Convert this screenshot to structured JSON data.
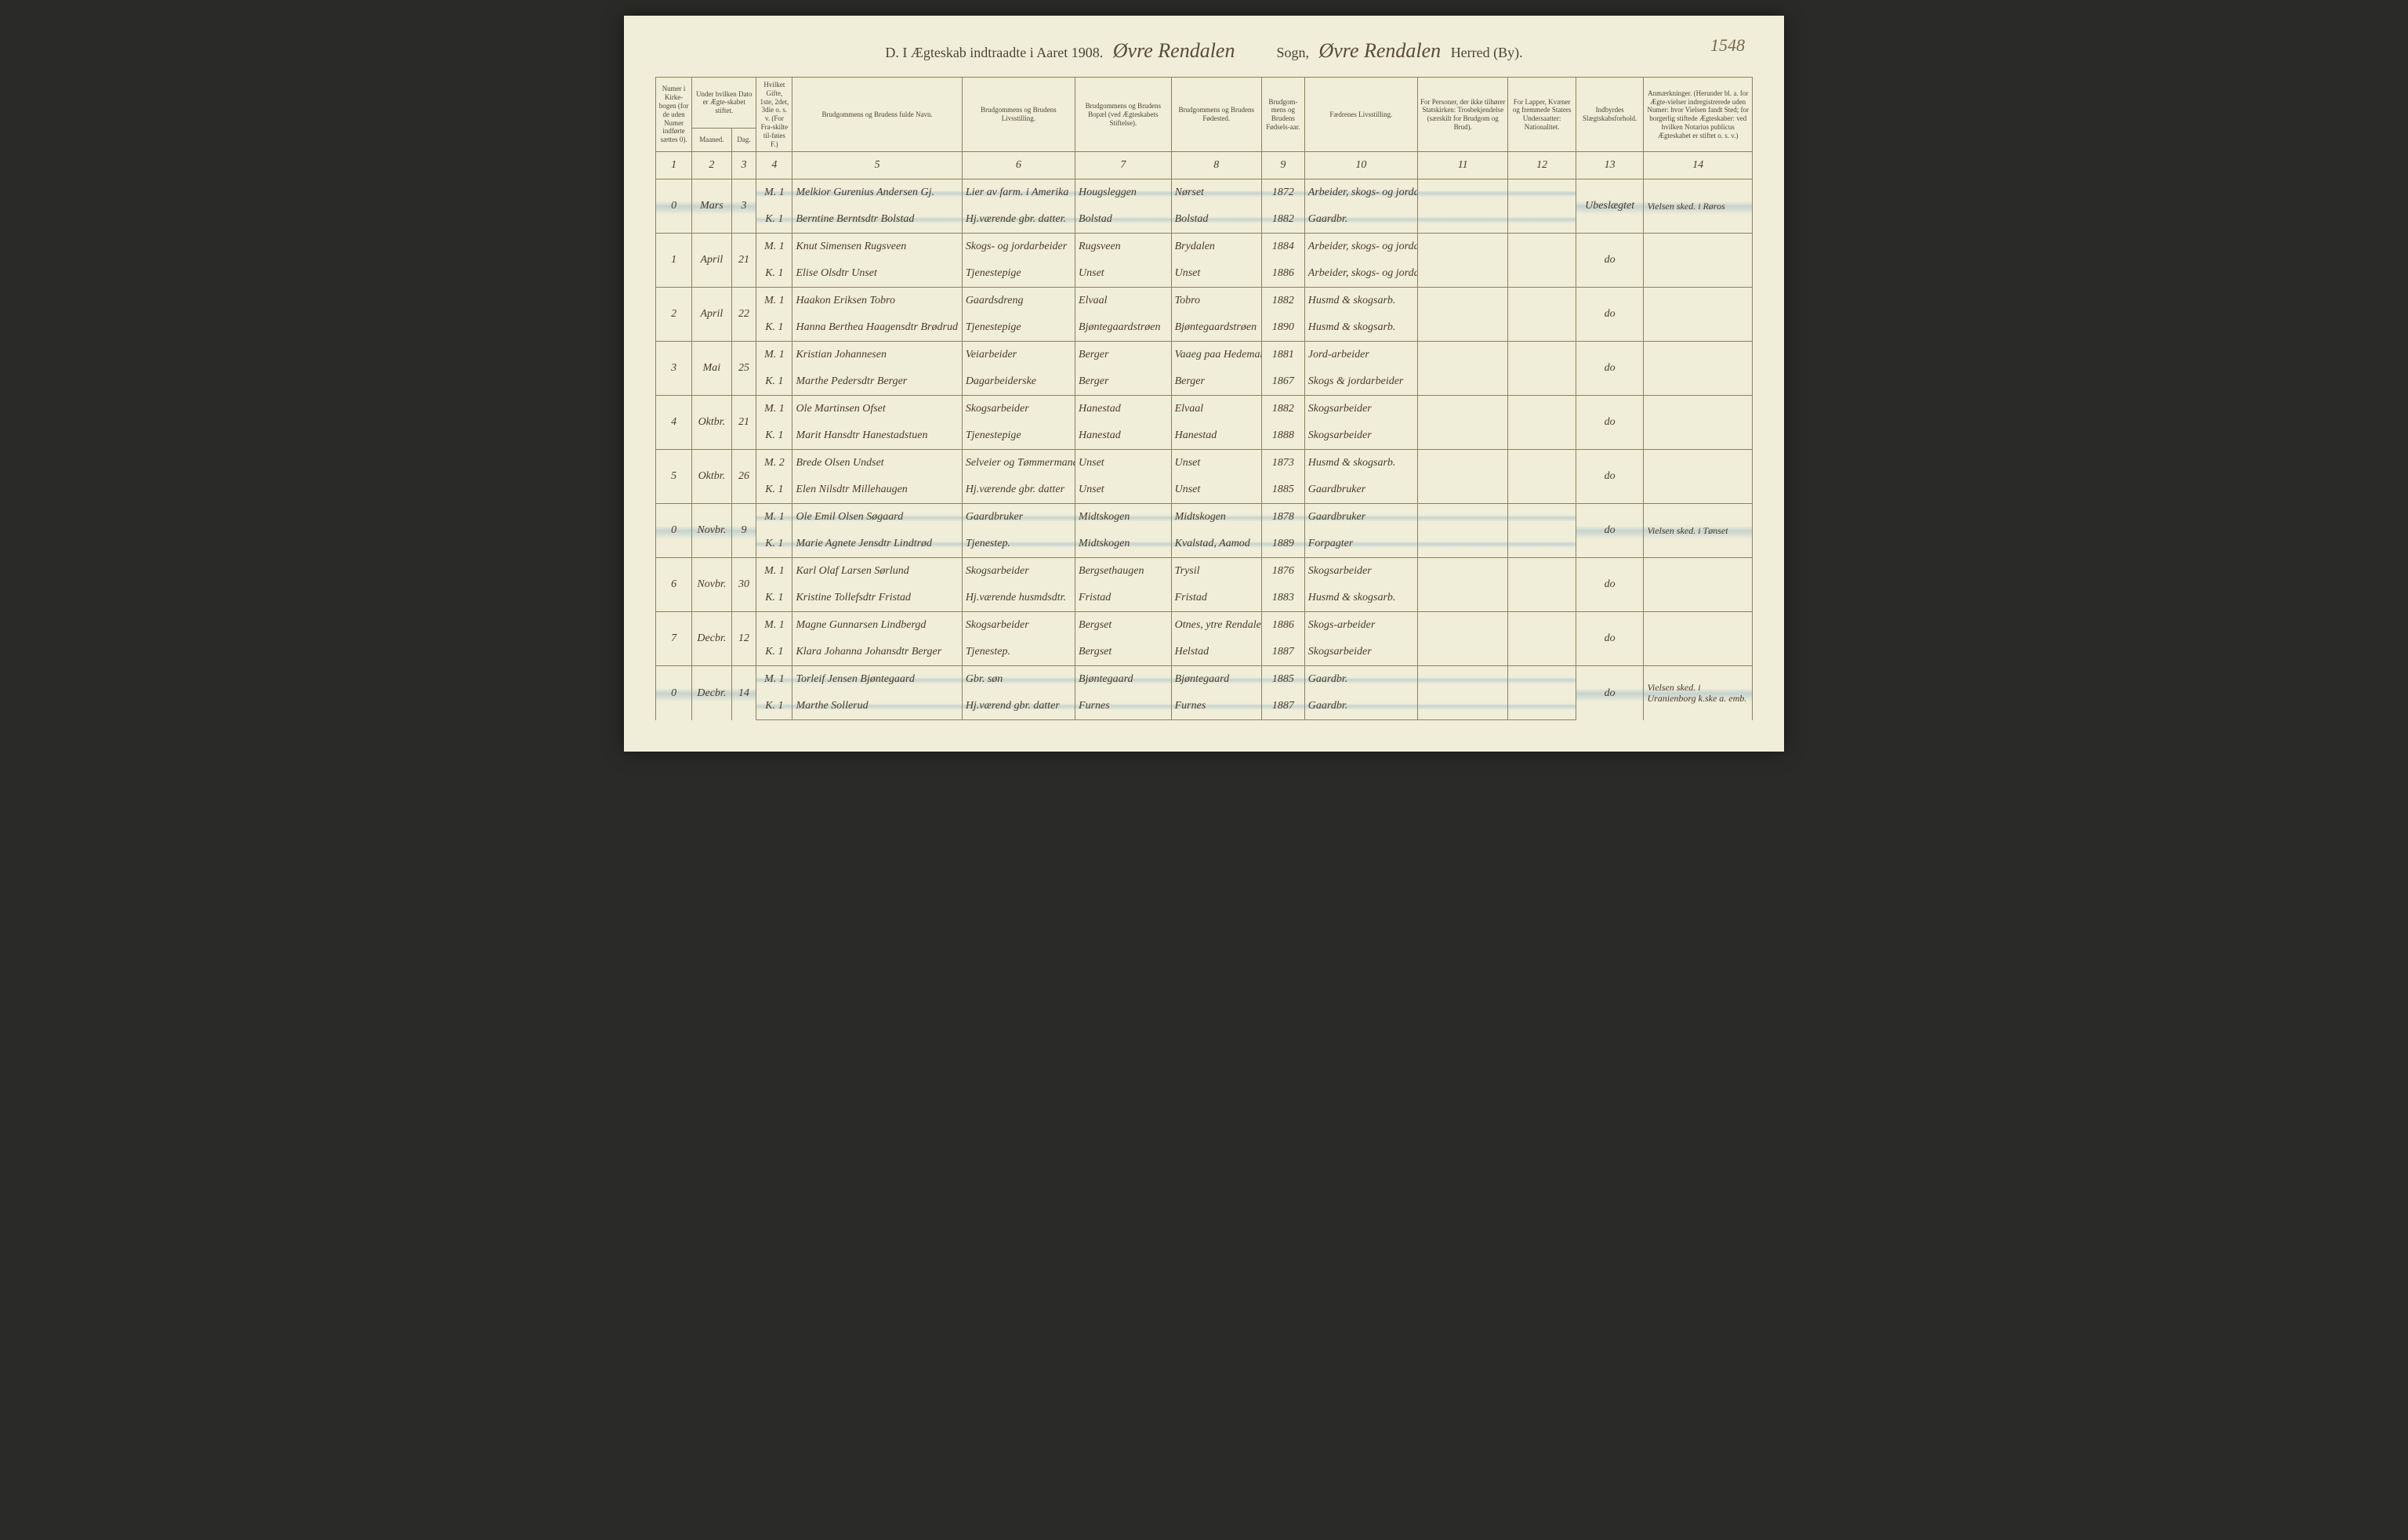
{
  "page_corner_number": "1548",
  "header": {
    "prefix": "D. I Ægteskab indtraadte i Aaret 190",
    "yeardigit": "8.",
    "parish": "Øvre Rendalen",
    "mid1": "Sogn,",
    "district": "Øvre Rendalen",
    "mid2": "Herred (By)."
  },
  "columns": {
    "c1": "Numer i Kirke-bogen (for de uden Numer indførte sættes 0).",
    "c2a": "Under hvilken Dato er Ægte-skabet stiftet.",
    "c2": "Maaned.",
    "c3": "Dag.",
    "c4": "Hvilket Gifte, 1ste, 2det, 3die o. s. v. (For Fra-skilte til-føies F.)",
    "c5": "Brudgommens og Brudens fulde Navn.",
    "c6": "Brudgommens og Brudens Livsstilling.",
    "c7": "Brudgommens og Brudens Bopæl (ved Ægteskabets Stiftelse).",
    "c8": "Brudgommens og Brudens Fødested.",
    "c9": "Brudgom-mens og Brudens Fødsels-aar.",
    "c10": "Fædrenes Livsstilling.",
    "c11": "For Personer, der ikke tilhører Statskirken: Trosbekjendelse (særskilt for Brudgom og Brud).",
    "c12": "For Lapper, Kvæner og fremmede Staters Undersaatter: Nationalitet.",
    "c13": "Indbyrdes Slægtskabsforhold.",
    "c14": "Anmærkninger. (Herunder bl. a. for Ægte-vielser indregistrerede uden Numer: hvor Vielsen fandt Sted; for borgerlig stiftede Ægteskaber: ved hvilken Notarius publicus Ægteskabet er stiftet o. s. v.)"
  },
  "colnums": [
    "1",
    "2",
    "3",
    "4",
    "5",
    "6",
    "7",
    "8",
    "9",
    "10",
    "11",
    "12",
    "13",
    "14"
  ],
  "entries": [
    {
      "num": "0",
      "month": "Mars",
      "day": "3",
      "highlighted": true,
      "m": {
        "mk": "M. 1",
        "name": "Melkior Gurenius Andersen Gj.",
        "occ": "Lier av farm. i Amerika",
        "res": "Hougsleggen",
        "birthpl": "Nørset",
        "year": "1872",
        "father": "Arbeider, skogs- og jordarb."
      },
      "k": {
        "mk": "K. 1",
        "name": "Berntine Berntsdtr Bolstad",
        "occ": "Hj.værende gbr. datter.",
        "res": "Bolstad",
        "birthpl": "Bolstad",
        "year": "1882",
        "father": "Gaardbr."
      },
      "rel": "Ubeslægtet",
      "note": "Vielsen sked. i Røros"
    },
    {
      "num": "1",
      "month": "April",
      "day": "21",
      "m": {
        "mk": "M. 1",
        "name": "Knut Simensen Rugsveen",
        "occ": "Skogs- og jordarbeider",
        "res": "Rugsveen",
        "birthpl": "Brydalen",
        "year": "1884",
        "father": "Arbeider, skogs- og jordarb."
      },
      "k": {
        "mk": "K. 1",
        "name": "Elise Olsdtr Unset",
        "occ": "Tjenestepige",
        "res": "Unset",
        "birthpl": "Unset",
        "year": "1886",
        "father": "Arbeider, skogs- og jordarb."
      },
      "rel": "do",
      "note": ""
    },
    {
      "num": "2",
      "month": "April",
      "day": "22",
      "m": {
        "mk": "M. 1",
        "name": "Haakon Eriksen Tobro",
        "occ": "Gaardsdreng",
        "res": "Elvaal",
        "birthpl": "Tobro",
        "year": "1882",
        "father": "Husmd & skogsarb."
      },
      "k": {
        "mk": "K. 1",
        "name": "Hanna Berthea Haagensdtr Brødrud",
        "occ": "Tjenestepige",
        "res": "Bjøntegaardstrøen",
        "birthpl": "Bjøntegaardstrøen",
        "year": "1890",
        "father": "Husmd & skogsarb."
      },
      "rel": "do",
      "note": ""
    },
    {
      "num": "3",
      "month": "Mai",
      "day": "25",
      "m": {
        "mk": "M. 1",
        "name": "Kristian Johannesen",
        "occ": "Veiarbeider",
        "res": "Berger",
        "birthpl": "Vaaeg paa Hedemarken",
        "year": "1881",
        "father": "Jord-arbeider"
      },
      "k": {
        "mk": "K. 1",
        "name": "Marthe Pedersdtr Berger",
        "occ": "Dagarbeiderske",
        "res": "Berger",
        "birthpl": "Berger",
        "year": "1867",
        "father": "Skogs & jordarbeider"
      },
      "rel": "do",
      "note": ""
    },
    {
      "num": "4",
      "month": "Oktbr.",
      "day": "21",
      "m": {
        "mk": "M. 1",
        "name": "Ole Martinsen Ofset",
        "occ": "Skogsarbeider",
        "res": "Hanestad",
        "birthpl": "Elvaal",
        "year": "1882",
        "father": "Skogsarbeider"
      },
      "k": {
        "mk": "K. 1",
        "name": "Marit Hansdtr Hanestadstuen",
        "occ": "Tjenestepige",
        "res": "Hanestad",
        "birthpl": "Hanestad",
        "year": "1888",
        "father": "Skogsarbeider"
      },
      "rel": "do",
      "note": ""
    },
    {
      "num": "5",
      "month": "Oktbr.",
      "day": "26",
      "m": {
        "mk": "M. 2",
        "name": "Brede Olsen Undset",
        "occ": "Selveier og Tømmermand",
        "res": "Unset",
        "birthpl": "Unset",
        "year": "1873",
        "father": "Husmd & skogsarb."
      },
      "k": {
        "mk": "K. 1",
        "name": "Elen Nilsdtr Millehaugen",
        "occ": "Hj.værende gbr. datter",
        "res": "Unset",
        "birthpl": "Unset",
        "year": "1885",
        "father": "Gaardbruker"
      },
      "rel": "do",
      "note": ""
    },
    {
      "num": "0",
      "month": "Novbr.",
      "day": "9",
      "highlighted": true,
      "m": {
        "mk": "M. 1",
        "name": "Ole Emil Olsen Søgaard",
        "occ": "Gaardbruker",
        "res": "Midtskogen",
        "birthpl": "Midtskogen",
        "year": "1878",
        "father": "Gaardbruker"
      },
      "k": {
        "mk": "K. 1",
        "name": "Marie Agnete Jensdtr Lindtrød",
        "occ": "Tjenestep.",
        "res": "Midtskogen",
        "birthpl": "Kvalstad, Aamod",
        "year": "1889",
        "father": "Forpagter"
      },
      "rel": "do",
      "note": "Vielsen sked. i Tønset"
    },
    {
      "num": "6",
      "month": "Novbr.",
      "day": "30",
      "m": {
        "mk": "M. 1",
        "name": "Karl Olaf Larsen Sørlund",
        "occ": "Skogsarbeider",
        "res": "Bergsethaugen",
        "birthpl": "Trysil",
        "year": "1876",
        "father": "Skogsarbeider"
      },
      "k": {
        "mk": "K. 1",
        "name": "Kristine Tollefsdtr Fristad",
        "occ": "Hj.værende husmdsdtr.",
        "res": "Fristad",
        "birthpl": "Fristad",
        "year": "1883",
        "father": "Husmd & skogsarb."
      },
      "rel": "do",
      "note": ""
    },
    {
      "num": "7",
      "month": "Decbr.",
      "day": "12",
      "m": {
        "mk": "M. 1",
        "name": "Magne Gunnarsen Lindbergd",
        "occ": "Skogsarbeider",
        "res": "Bergset",
        "birthpl": "Otnes, ytre Rendalen",
        "year": "1886",
        "father": "Skogs-arbeider"
      },
      "k": {
        "mk": "K. 1",
        "name": "Klara Johanna Johansdtr Berger",
        "occ": "Tjenestep.",
        "res": "Bergset",
        "birthpl": "Helstad",
        "year": "1887",
        "father": "Skogsarbeider"
      },
      "rel": "do",
      "note": ""
    },
    {
      "num": "0",
      "month": "Decbr.",
      "day": "14",
      "highlighted": true,
      "m": {
        "mk": "M. 1",
        "name": "Torleif Jensen Bjøntegaard",
        "occ": "Gbr. søn",
        "res": "Bjøntegaard",
        "birthpl": "Bjøntegaard",
        "year": "1885",
        "father": "Gaardbr."
      },
      "k": {
        "mk": "K. 1",
        "name": "Marthe Sollerud",
        "occ": "Hj.værend gbr. datter",
        "res": "Furnes",
        "birthpl": "Furnes",
        "year": "1887",
        "father": "Gaardbr."
      },
      "rel": "do",
      "note": "Vielsen sked. i Uranienborg k.ske a. emb."
    }
  ],
  "style": {
    "page_bg": "#f0eed8",
    "border_color": "#8a8060",
    "ink_color": "#4a3a28",
    "print_color": "#4a4438",
    "highlight_color": "rgba(120,160,190,0.35)",
    "script_font": "cursive",
    "print_font": "Georgia, serif",
    "header_fontsize_pt": 14,
    "script_fontsize_pt": 20,
    "th_fontsize_pt": 7,
    "td_fontsize_pt": 11
  }
}
